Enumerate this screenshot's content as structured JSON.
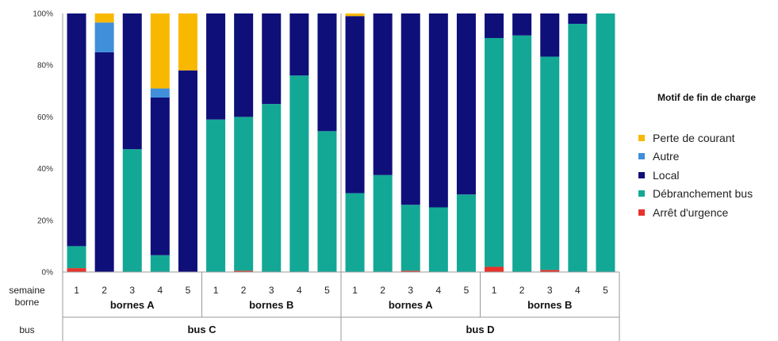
{
  "chart_data": {
    "type": "bar",
    "stacked": "percent",
    "y_ticks": [
      "0%",
      "20%",
      "40%",
      "60%",
      "80%",
      "100%"
    ],
    "ylim": [
      0,
      100
    ],
    "row_labels": {
      "semaine": "semaine",
      "borne": "borne",
      "bus": "bus"
    },
    "legend_title": "Motif de fin de charge",
    "categories": [
      {
        "semaine": "1",
        "borne": "bornes A",
        "bus": "bus C"
      },
      {
        "semaine": "2",
        "borne": "bornes A",
        "bus": "bus C"
      },
      {
        "semaine": "3",
        "borne": "bornes A",
        "bus": "bus C"
      },
      {
        "semaine": "4",
        "borne": "bornes A",
        "bus": "bus C"
      },
      {
        "semaine": "5",
        "borne": "bornes A",
        "bus": "bus C"
      },
      {
        "semaine": "1",
        "borne": "bornes B",
        "bus": "bus C"
      },
      {
        "semaine": "2",
        "borne": "bornes B",
        "bus": "bus C"
      },
      {
        "semaine": "3",
        "borne": "bornes B",
        "bus": "bus C"
      },
      {
        "semaine": "4",
        "borne": "bornes B",
        "bus": "bus C"
      },
      {
        "semaine": "5",
        "borne": "bornes B",
        "bus": "bus C"
      },
      {
        "semaine": "1",
        "borne": "bornes A",
        "bus": "bus D"
      },
      {
        "semaine": "2",
        "borne": "bornes A",
        "bus": "bus D"
      },
      {
        "semaine": "3",
        "borne": "bornes A",
        "bus": "bus D"
      },
      {
        "semaine": "4",
        "borne": "bornes A",
        "bus": "bus D"
      },
      {
        "semaine": "5",
        "borne": "bornes A",
        "bus": "bus D"
      },
      {
        "semaine": "1",
        "borne": "bornes B",
        "bus": "bus D"
      },
      {
        "semaine": "2",
        "borne": "bornes B",
        "bus": "bus D"
      },
      {
        "semaine": "3",
        "borne": "bornes B",
        "bus": "bus D"
      },
      {
        "semaine": "4",
        "borne": "bornes B",
        "bus": "bus D"
      },
      {
        "semaine": "5",
        "borne": "bornes B",
        "bus": "bus D"
      }
    ],
    "series": [
      {
        "name": "Arrêt d'urgence",
        "color": "#e8322b",
        "values": [
          1.5,
          0,
          0,
          0,
          0,
          0,
          0.5,
          0,
          0,
          0,
          0,
          0,
          0.5,
          0,
          0,
          2,
          0,
          0.8,
          0,
          0
        ]
      },
      {
        "name": "Débranchement bus",
        "color": "#13a896",
        "values": [
          8.5,
          0,
          47.5,
          6.5,
          0,
          59,
          59.5,
          65,
          76,
          54.5,
          30.5,
          37.5,
          25.5,
          25,
          30,
          88.5,
          91.5,
          82.5,
          96,
          100
        ]
      },
      {
        "name": "Local",
        "color": "#0f0f7a",
        "values": [
          90,
          85,
          52.5,
          61,
          78,
          41,
          40,
          35,
          24,
          45.5,
          68.5,
          62.5,
          74,
          75,
          70,
          9.5,
          8.5,
          16.7,
          4,
          0
        ]
      },
      {
        "name": "Autre",
        "color": "#3f8fdb",
        "values": [
          0,
          11.5,
          0,
          3.5,
          0,
          0,
          0,
          0,
          0,
          0,
          0,
          0,
          0,
          0,
          0,
          0,
          0,
          0,
          0,
          0
        ]
      },
      {
        "name": "Perte de courant",
        "color": "#f9b800",
        "values": [
          0,
          3.5,
          0,
          29,
          22,
          0,
          0,
          0,
          0,
          0,
          1,
          0,
          0,
          0,
          0,
          0,
          0,
          0,
          0,
          0
        ]
      }
    ],
    "legend_order": [
      "Perte de courant",
      "Autre",
      "Local",
      "Débranchement bus",
      "Arrêt d'urgence"
    ],
    "legend_position": "right",
    "grid": false
  }
}
